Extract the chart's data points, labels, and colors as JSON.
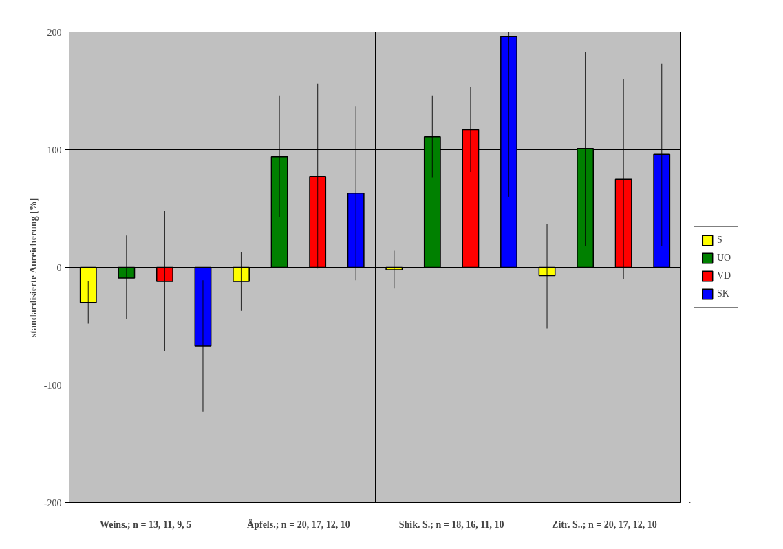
{
  "chart_data": {
    "type": "bar",
    "ylabel": "standardisierte Anreicherung [%]",
    "categories": [
      "Weins.; n = 13, 11, 9, 5",
      "Äpfels.; n = 20, 17, 12, 10",
      "Shik. S.; n = 18, 16, 11, 10",
      "Zitr. S..; n = 20, 17, 12, 10"
    ],
    "series": [
      {
        "name": "S",
        "color": "#ffff00",
        "values": [
          -30,
          -12,
          -2,
          -7
        ],
        "errors": [
          [
            -48,
            -12
          ],
          [
            -37,
            13
          ],
          [
            -18,
            14
          ],
          [
            -52,
            37
          ]
        ]
      },
      {
        "name": "UO",
        "color": "#008000",
        "values": [
          -9,
          94,
          111,
          101
        ],
        "errors": [
          [
            -44,
            27
          ],
          [
            43,
            146
          ],
          [
            76,
            146
          ],
          [
            18,
            183
          ]
        ]
      },
      {
        "name": "VD",
        "color": "#ff0000",
        "values": [
          -12,
          77,
          117,
          75
        ],
        "errors": [
          [
            -71,
            48
          ],
          [
            -1,
            156
          ],
          [
            81,
            153
          ],
          [
            -10,
            160
          ]
        ]
      },
      {
        "name": "SK",
        "color": "#0000ff",
        "values": [
          -67,
          63,
          196,
          96
        ],
        "errors": [
          [
            -123,
            -11
          ],
          [
            -11,
            137
          ],
          [
            60,
            200
          ],
          [
            18,
            173
          ]
        ]
      }
    ],
    "ylim": [
      -200,
      200
    ],
    "yticks": [
      -200,
      -100,
      0,
      100,
      200
    ],
    "grid": true,
    "legend": "right"
  }
}
